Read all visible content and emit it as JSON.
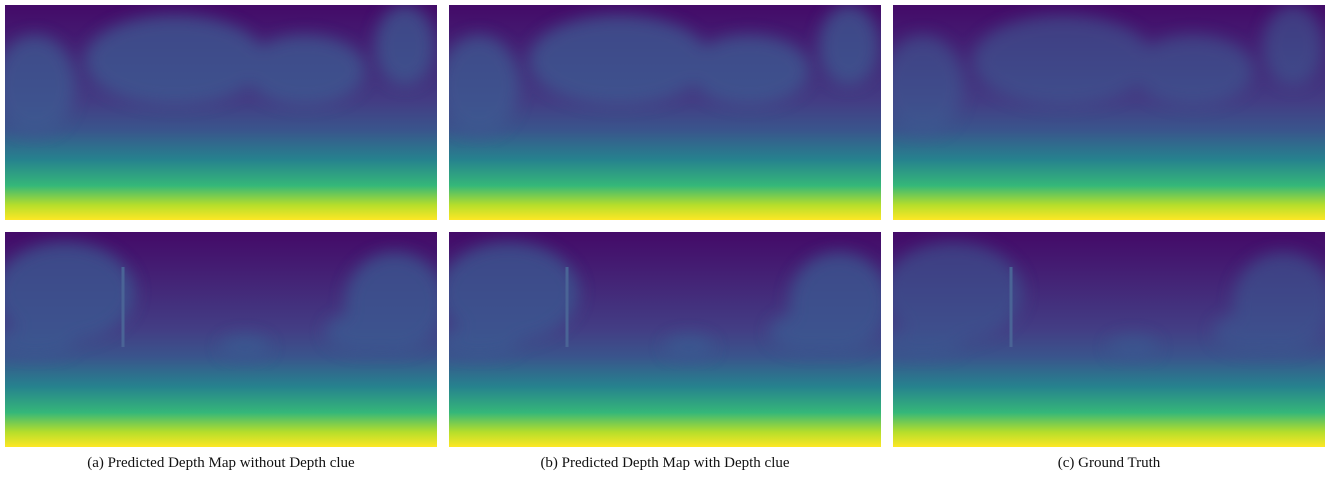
{
  "captions": [
    "(a) Predicted Depth Map without Depth clue",
    "(b) Predicted Depth Map with Depth clue",
    "(c) Ground Truth"
  ]
}
